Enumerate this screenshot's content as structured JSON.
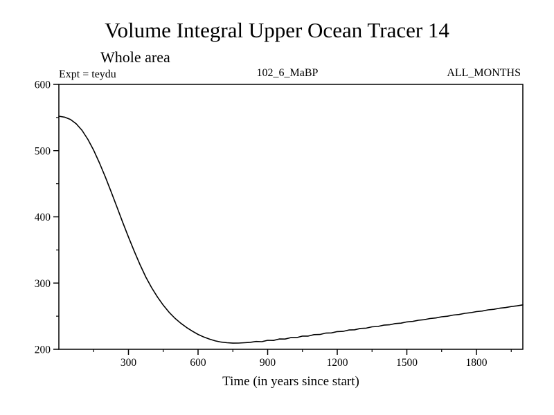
{
  "page": {
    "title": "Volume Integral Upper Ocean Tracer 14",
    "subtitle": "Whole area",
    "expt_label": "Expt = teydu",
    "dataset_label": "102_6_MaBP",
    "months_label": "ALL_MONTHS",
    "xaxis_title": "Time (in years since start)"
  },
  "chart_data": {
    "type": "line",
    "title": "Volume Integral Upper Ocean Tracer 14",
    "subtitle": "Whole area",
    "annotations": [
      "Expt = teydu",
      "102_6_MaBP",
      "ALL_MONTHS"
    ],
    "xlabel": "Time (in years since start)",
    "ylabel": "",
    "xlim": [
      0,
      2000
    ],
    "ylim": [
      200,
      600
    ],
    "x_major_ticks": [
      300,
      600,
      900,
      1200,
      1500,
      1800
    ],
    "x_minor_step": 150,
    "y_major_ticks": [
      200,
      300,
      400,
      500,
      600
    ],
    "y_minor_step": 50,
    "grid": false,
    "legend": "none",
    "line_color": "#000000",
    "frame_color": "#000000",
    "series": [
      {
        "name": "Upper Ocean Tracer 14 volume integral",
        "points": [
          [
            0,
            552
          ],
          [
            25,
            550.5
          ],
          [
            50,
            547
          ],
          [
            75,
            540.5
          ],
          [
            100,
            530.5
          ],
          [
            125,
            517
          ],
          [
            150,
            500.5
          ],
          [
            175,
            481.5
          ],
          [
            200,
            460.5
          ],
          [
            225,
            438
          ],
          [
            250,
            415
          ],
          [
            275,
            392
          ],
          [
            300,
            369.5
          ],
          [
            325,
            348
          ],
          [
            350,
            327.5
          ],
          [
            375,
            309
          ],
          [
            400,
            293
          ],
          [
            425,
            279
          ],
          [
            450,
            266.5
          ],
          [
            475,
            256
          ],
          [
            500,
            247
          ],
          [
            525,
            239.5
          ],
          [
            550,
            233
          ],
          [
            575,
            227.5
          ],
          [
            600,
            222.5
          ],
          [
            625,
            218.5
          ],
          [
            650,
            215.2
          ],
          [
            675,
            212.6
          ],
          [
            700,
            210.9
          ],
          [
            725,
            209.9
          ],
          [
            750,
            209.3
          ],
          [
            775,
            209.4
          ],
          [
            800,
            209.9
          ],
          [
            825,
            210.6
          ],
          [
            850,
            211.8
          ],
          [
            875,
            211.5
          ],
          [
            900,
            213.6
          ],
          [
            925,
            213.4
          ],
          [
            950,
            215.6
          ],
          [
            975,
            215.5
          ],
          [
            1000,
            217.7
          ],
          [
            1025,
            217.7
          ],
          [
            1050,
            219.9
          ],
          [
            1075,
            220.0
          ],
          [
            1100,
            222.1
          ],
          [
            1125,
            222.3
          ],
          [
            1150,
            224.4
          ],
          [
            1175,
            224.7
          ],
          [
            1200,
            226.7
          ],
          [
            1225,
            227.1
          ],
          [
            1250,
            229.1
          ],
          [
            1275,
            229.5
          ],
          [
            1300,
            231.5
          ],
          [
            1325,
            232.0
          ],
          [
            1350,
            233.9
          ],
          [
            1375,
            234.5
          ],
          [
            1400,
            236.4
          ],
          [
            1425,
            237.0
          ],
          [
            1450,
            238.9
          ],
          [
            1475,
            239.5
          ],
          [
            1500,
            241.4
          ],
          [
            1525,
            242.1
          ],
          [
            1550,
            243.9
          ],
          [
            1575,
            244.7
          ],
          [
            1600,
            246.5
          ],
          [
            1625,
            247.3
          ],
          [
            1650,
            249.1
          ],
          [
            1675,
            249.9
          ],
          [
            1700,
            251.7
          ],
          [
            1725,
            252.5
          ],
          [
            1750,
            254.3
          ],
          [
            1775,
            255.2
          ],
          [
            1800,
            256.9
          ],
          [
            1825,
            257.8
          ],
          [
            1850,
            259.5
          ],
          [
            1875,
            260.4
          ],
          [
            1900,
            262.0
          ],
          [
            1925,
            263.0
          ],
          [
            1950,
            264.5
          ],
          [
            1975,
            265.6
          ],
          [
            2000,
            267.0
          ]
        ]
      }
    ]
  }
}
